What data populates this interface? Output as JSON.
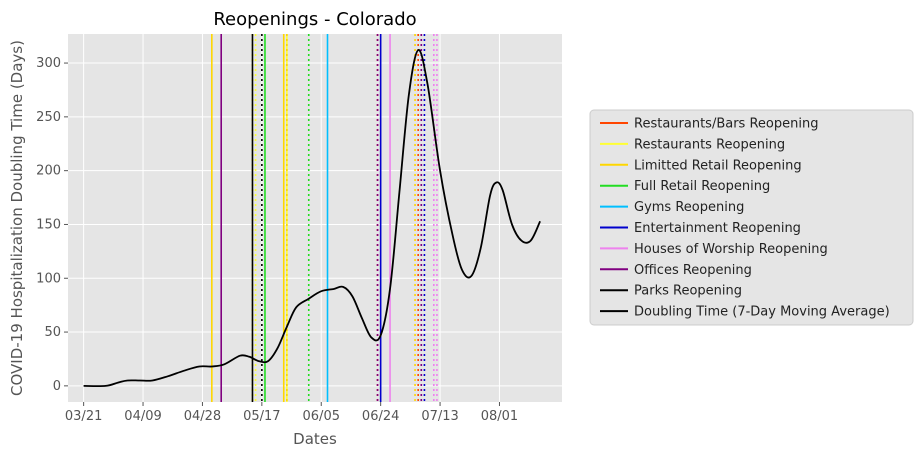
{
  "chart_data": {
    "type": "line",
    "title": "Reopenings - Colorado",
    "xlabel": "Dates",
    "ylabel": "COVID-19 Hospitalization Doubling Time (Days)",
    "grid": true,
    "legend_position": "right",
    "xlim": [
      "2020-03-16",
      "2020-08-21"
    ],
    "ylim": [
      -15,
      327
    ],
    "x_ticks": [
      {
        "date": "2020-03-21",
        "label": "03/21"
      },
      {
        "date": "2020-04-09",
        "label": "04/09"
      },
      {
        "date": "2020-04-28",
        "label": "04/28"
      },
      {
        "date": "2020-05-17",
        "label": "05/17"
      },
      {
        "date": "2020-06-05",
        "label": "06/05"
      },
      {
        "date": "2020-06-24",
        "label": "06/24"
      },
      {
        "date": "2020-07-13",
        "label": "07/13"
      },
      {
        "date": "2020-08-01",
        "label": "08/01"
      }
    ],
    "y_ticks": [
      0,
      50,
      100,
      150,
      200,
      250,
      300
    ],
    "series": [
      {
        "name": "Doubling Time (7-Day Moving Average)",
        "color": "#000000",
        "points": [
          [
            "2020-03-21",
            0
          ],
          [
            "2020-03-28",
            0
          ],
          [
            "2020-04-01",
            3
          ],
          [
            "2020-04-04",
            5
          ],
          [
            "2020-04-08",
            5
          ],
          [
            "2020-04-12",
            5
          ],
          [
            "2020-04-17",
            9
          ],
          [
            "2020-04-22",
            14
          ],
          [
            "2020-04-27",
            18
          ],
          [
            "2020-05-01",
            18
          ],
          [
            "2020-05-05",
            20
          ],
          [
            "2020-05-10",
            28
          ],
          [
            "2020-05-13",
            27
          ],
          [
            "2020-05-16",
            23
          ],
          [
            "2020-05-19",
            23
          ],
          [
            "2020-05-22",
            35
          ],
          [
            "2020-05-25",
            55
          ],
          [
            "2020-05-28",
            73
          ],
          [
            "2020-06-01",
            81
          ],
          [
            "2020-06-05",
            88
          ],
          [
            "2020-06-09",
            90
          ],
          [
            "2020-06-12",
            92
          ],
          [
            "2020-06-15",
            83
          ],
          [
            "2020-06-18",
            63
          ],
          [
            "2020-06-21",
            45
          ],
          [
            "2020-06-24",
            47
          ],
          [
            "2020-06-27",
            90
          ],
          [
            "2020-06-30",
            180
          ],
          [
            "2020-07-03",
            270
          ],
          [
            "2020-07-06",
            312
          ],
          [
            "2020-07-09",
            280
          ],
          [
            "2020-07-13",
            200
          ],
          [
            "2020-07-17",
            140
          ],
          [
            "2020-07-20",
            108
          ],
          [
            "2020-07-23",
            102
          ],
          [
            "2020-07-26",
            128
          ],
          [
            "2020-07-29",
            177
          ],
          [
            "2020-07-31",
            189
          ],
          [
            "2020-08-02",
            182
          ],
          [
            "2020-08-05",
            150
          ],
          [
            "2020-08-08",
            135
          ],
          [
            "2020-08-11",
            135
          ],
          [
            "2020-08-14",
            153
          ]
        ]
      }
    ],
    "reopening_lines": [
      {
        "name": "Restaurants/Bars Reopening",
        "color": "#ff4500",
        "dates": [
          "2020-06-23",
          "2020-07-06"
        ],
        "styles": [
          "dotted",
          "dotted"
        ]
      },
      {
        "name": "Restaurants Reopening",
        "color": "#ffff33",
        "dates": [
          "2020-05-15",
          "2020-05-25"
        ],
        "styles": [
          "dotted",
          "solid"
        ]
      },
      {
        "name": "Limitted Retail Reopening",
        "color": "#ffd700",
        "dates": [
          "2020-05-01",
          "2020-05-14",
          "2020-05-24",
          "2020-05-25",
          "2020-07-05"
        ],
        "styles": [
          "solid",
          "dotted",
          "solid",
          "dotted",
          "dotted"
        ]
      },
      {
        "name": "Full Retail Reopening",
        "color": "#22dd22",
        "dates": [
          "2020-05-18",
          "2020-06-01"
        ],
        "styles": [
          "solid",
          "dotted"
        ]
      },
      {
        "name": "Gyms Reopening",
        "color": "#00bfff",
        "dates": [
          "2020-06-07"
        ],
        "styles": [
          "solid"
        ]
      },
      {
        "name": "Entertainment Reopening",
        "color": "#0000cd",
        "dates": [
          "2020-06-24",
          "2020-07-08"
        ],
        "styles": [
          "solid",
          "dotted"
        ]
      },
      {
        "name": "Houses of Worship Reopening",
        "color": "#ee82ee",
        "dates": [
          "2020-06-27",
          "2020-07-11",
          "2020-07-12"
        ],
        "styles": [
          "solid",
          "dotted",
          "dotted"
        ]
      },
      {
        "name": "Offices Reopening",
        "color": "#800080",
        "dates": [
          "2020-05-04",
          "2020-06-23",
          "2020-07-07"
        ],
        "styles": [
          "solid",
          "dotted",
          "dotted"
        ]
      },
      {
        "name": "Parks Reopening",
        "color": "#000000",
        "dates": [
          "2020-05-14",
          "2020-05-17"
        ],
        "styles": [
          "solid",
          "dotted"
        ]
      }
    ],
    "legend": [
      {
        "label": "Restaurants/Bars Reopening",
        "color": "#ff4500"
      },
      {
        "label": "Restaurants Reopening",
        "color": "#ffff33"
      },
      {
        "label": "Limitted Retail Reopening",
        "color": "#ffd700"
      },
      {
        "label": "Full Retail Reopening",
        "color": "#22dd22"
      },
      {
        "label": "Gyms Reopening",
        "color": "#00bfff"
      },
      {
        "label": "Entertainment Reopening",
        "color": "#0000cd"
      },
      {
        "label": "Houses of Worship Reopening",
        "color": "#ee82ee"
      },
      {
        "label": "Offices Reopening",
        "color": "#800080"
      },
      {
        "label": "Parks Reopening",
        "color": "#000000"
      },
      {
        "label": "Doubling Time (7-Day Moving Average)",
        "color": "#000000"
      }
    ]
  }
}
